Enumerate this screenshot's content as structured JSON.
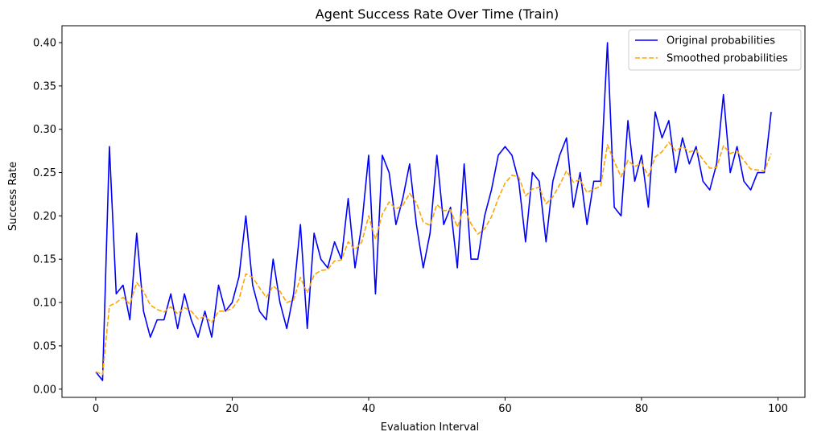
{
  "chart_data": {
    "type": "line",
    "title": "Agent Success Rate Over Time (Train)",
    "xlabel": "Evaluation Interval",
    "ylabel": "Success Rate",
    "xlim": [
      -4.95,
      103.95
    ],
    "ylim": [
      -0.0095,
      0.4195
    ],
    "xticks": [
      0,
      20,
      40,
      60,
      80,
      100
    ],
    "yticks": [
      0.0,
      0.05,
      0.1,
      0.15,
      0.2,
      0.25,
      0.3,
      0.35,
      0.4
    ],
    "ytick_labels": [
      "0.00",
      "0.05",
      "0.10",
      "0.15",
      "0.20",
      "0.25",
      "0.30",
      "0.35",
      "0.40"
    ],
    "grid": false,
    "legend_position": "upper right",
    "series": [
      {
        "name": "Original probabilities",
        "color": "#0000ff",
        "style": "solid",
        "values": [
          0.02,
          0.01,
          0.28,
          0.11,
          0.12,
          0.08,
          0.18,
          0.09,
          0.06,
          0.08,
          0.08,
          0.11,
          0.07,
          0.11,
          0.08,
          0.06,
          0.09,
          0.06,
          0.12,
          0.09,
          0.1,
          0.13,
          0.2,
          0.12,
          0.09,
          0.08,
          0.15,
          0.1,
          0.07,
          0.11,
          0.19,
          0.07,
          0.18,
          0.15,
          0.14,
          0.17,
          0.15,
          0.22,
          0.14,
          0.19,
          0.27,
          0.11,
          0.27,
          0.25,
          0.19,
          0.22,
          0.26,
          0.19,
          0.14,
          0.18,
          0.27,
          0.19,
          0.21,
          0.14,
          0.26,
          0.15,
          0.15,
          0.2,
          0.23,
          0.27,
          0.28,
          0.27,
          0.24,
          0.17,
          0.25,
          0.24,
          0.17,
          0.24,
          0.27,
          0.29,
          0.21,
          0.25,
          0.19,
          0.24,
          0.24,
          0.4,
          0.21,
          0.2,
          0.31,
          0.24,
          0.27,
          0.21,
          0.32,
          0.29,
          0.31,
          0.25,
          0.29,
          0.26,
          0.28,
          0.24,
          0.23,
          0.26,
          0.34,
          0.25,
          0.28,
          0.24,
          0.23,
          0.25,
          0.25,
          0.32
        ]
      },
      {
        "name": "Smoothed probabilities",
        "color": "#ffa500",
        "style": "dashed",
        "values": [
          0.02,
          0.017,
          0.096,
          0.1,
          0.106,
          0.098,
          0.123,
          0.113,
          0.097,
          0.092,
          0.089,
          0.095,
          0.087,
          0.094,
          0.09,
          0.081,
          0.084,
          0.077,
          0.09,
          0.09,
          0.093,
          0.104,
          0.133,
          0.129,
          0.117,
          0.106,
          0.119,
          0.113,
          0.1,
          0.103,
          0.129,
          0.111,
          0.132,
          0.137,
          0.138,
          0.148,
          0.149,
          0.17,
          0.161,
          0.17,
          0.2,
          0.173,
          0.202,
          0.216,
          0.208,
          0.212,
          0.226,
          0.215,
          0.193,
          0.189,
          0.213,
          0.206,
          0.207,
          0.187,
          0.209,
          0.191,
          0.179,
          0.185,
          0.199,
          0.22,
          0.238,
          0.247,
          0.245,
          0.223,
          0.231,
          0.233,
          0.214,
          0.222,
          0.236,
          0.252,
          0.239,
          0.242,
          0.227,
          0.231,
          0.234,
          0.282,
          0.263,
          0.245,
          0.264,
          0.257,
          0.261,
          0.246,
          0.268,
          0.274,
          0.285,
          0.275,
          0.28,
          0.274,
          0.276,
          0.265,
          0.255,
          0.256,
          0.281,
          0.272,
          0.275,
          0.264,
          0.254,
          0.253,
          0.252,
          0.272
        ]
      }
    ]
  }
}
